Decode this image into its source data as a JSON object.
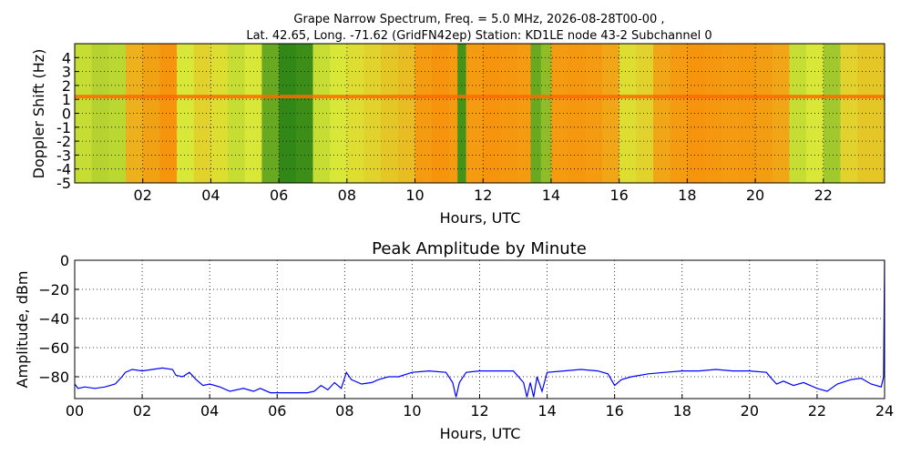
{
  "figure": {
    "title_line1": "Grape Narrow Spectrum, Freq. = 5.0 MHz, 2026-08-28T00-00 ,",
    "title_line2": "Lat.  42.65, Long. -71.62 (GridFN42ep) Station: KD1LE node 43-2 Subchannel 0"
  },
  "chart_data": [
    {
      "type": "heatmap",
      "title": "",
      "xlabel": "Hours, UTC",
      "ylabel": "Doppler Shift (Hz)",
      "xlim": [
        0,
        23.8
      ],
      "ylim": [
        -5,
        5
      ],
      "x_ticks": [
        2,
        4,
        6,
        8,
        10,
        12,
        14,
        16,
        18,
        20,
        22
      ],
      "x_tick_labels": [
        "02",
        "04",
        "06",
        "08",
        "10",
        "12",
        "14",
        "16",
        "18",
        "20",
        "22"
      ],
      "y_ticks": [
        -5,
        -4,
        -3,
        -2,
        -1,
        0,
        1,
        2,
        3,
        4
      ],
      "y_tick_labels": [
        "-5",
        "-4",
        "-3",
        "-2",
        "-1",
        "0",
        "1",
        "2",
        "3",
        "4"
      ],
      "grid": true,
      "colors": {
        "low": "#1e7d12",
        "mid": "#d9e838",
        "high": "#ff7a00"
      },
      "carrier_doppler_hz": 1.2,
      "column_intensity": [
        {
          "x": 0.0,
          "v": 0.45
        },
        {
          "x": 0.5,
          "v": 0.4
        },
        {
          "x": 1.0,
          "v": 0.42
        },
        {
          "x": 1.5,
          "v": 0.75
        },
        {
          "x": 2.0,
          "v": 0.82
        },
        {
          "x": 2.5,
          "v": 0.88
        },
        {
          "x": 3.0,
          "v": 0.5
        },
        {
          "x": 3.5,
          "v": 0.6
        },
        {
          "x": 4.0,
          "v": 0.55
        },
        {
          "x": 4.5,
          "v": 0.45
        },
        {
          "x": 5.0,
          "v": 0.5
        },
        {
          "x": 5.5,
          "v": 0.2
        },
        {
          "x": 6.0,
          "v": 0.05
        },
        {
          "x": 6.5,
          "v": 0.08
        },
        {
          "x": 7.0,
          "v": 0.45
        },
        {
          "x": 7.5,
          "v": 0.5
        },
        {
          "x": 8.0,
          "v": 0.55
        },
        {
          "x": 8.5,
          "v": 0.6
        },
        {
          "x": 9.0,
          "v": 0.65
        },
        {
          "x": 9.5,
          "v": 0.7
        },
        {
          "x": 10.0,
          "v": 0.85
        },
        {
          "x": 10.5,
          "v": 0.88
        },
        {
          "x": 11.0,
          "v": 0.85
        },
        {
          "x": 11.25,
          "v": 0.1
        },
        {
          "x": 11.5,
          "v": 0.85
        },
        {
          "x": 12.0,
          "v": 0.88
        },
        {
          "x": 12.5,
          "v": 0.87
        },
        {
          "x": 13.0,
          "v": 0.85
        },
        {
          "x": 13.4,
          "v": 0.2
        },
        {
          "x": 13.7,
          "v": 0.3
        },
        {
          "x": 14.0,
          "v": 0.85
        },
        {
          "x": 14.5,
          "v": 0.87
        },
        {
          "x": 15.0,
          "v": 0.85
        },
        {
          "x": 15.5,
          "v": 0.8
        },
        {
          "x": 16.0,
          "v": 0.55
        },
        {
          "x": 16.5,
          "v": 0.6
        },
        {
          "x": 17.0,
          "v": 0.8
        },
        {
          "x": 17.5,
          "v": 0.85
        },
        {
          "x": 18.0,
          "v": 0.88
        },
        {
          "x": 18.5,
          "v": 0.87
        },
        {
          "x": 19.0,
          "v": 0.85
        },
        {
          "x": 19.5,
          "v": 0.86
        },
        {
          "x": 20.0,
          "v": 0.84
        },
        {
          "x": 20.5,
          "v": 0.8
        },
        {
          "x": 21.0,
          "v": 0.45
        },
        {
          "x": 21.5,
          "v": 0.5
        },
        {
          "x": 22.0,
          "v": 0.35
        },
        {
          "x": 22.5,
          "v": 0.6
        },
        {
          "x": 23.0,
          "v": 0.65
        },
        {
          "x": 23.8,
          "v": 0.6
        }
      ]
    },
    {
      "type": "line",
      "title": "Peak Amplitude by Minute",
      "xlabel": "Hours, UTC",
      "ylabel": "Amplitude, dBm",
      "xlim": [
        0,
        24
      ],
      "ylim": [
        -95,
        0
      ],
      "x_ticks": [
        0,
        2,
        4,
        6,
        8,
        10,
        12,
        14,
        16,
        18,
        20,
        22,
        24
      ],
      "x_tick_labels": [
        "00",
        "02",
        "04",
        "06",
        "08",
        "10",
        "12",
        "14",
        "16",
        "18",
        "20",
        "22",
        "24"
      ],
      "y_ticks": [
        0,
        -20,
        -40,
        -60,
        -80
      ],
      "y_tick_labels": [
        "0",
        "−20",
        "−40",
        "−60",
        "−80"
      ],
      "grid": true,
      "line_color": "#0000ff",
      "series": [
        {
          "x": [
            0,
            0.1,
            0.3,
            0.6,
            0.9,
            1.2,
            1.4,
            1.5,
            1.7,
            2.0,
            2.3,
            2.6,
            2.9,
            3.0,
            3.2,
            3.4,
            3.6,
            3.8,
            4.0,
            4.3,
            4.6,
            5.0,
            5.3,
            5.5,
            5.8,
            6.0,
            6.3,
            6.6,
            6.9,
            7.1,
            7.3,
            7.5,
            7.7,
            7.9,
            8.05,
            8.2,
            8.5,
            8.8,
            9.0,
            9.3,
            9.6,
            10.0,
            10.5,
            11.0,
            11.2,
            11.3,
            11.4,
            11.6,
            12.0,
            12.5,
            13.0,
            13.3,
            13.4,
            13.5,
            13.6,
            13.7,
            13.85,
            14.0,
            14.5,
            15.0,
            15.5,
            15.8,
            16.0,
            16.2,
            16.5,
            17.0,
            17.5,
            18.0,
            18.5,
            19.0,
            19.5,
            20.0,
            20.5,
            20.6,
            20.8,
            21.0,
            21.3,
            21.6,
            22.0,
            22.3,
            22.6,
            23.0,
            23.3,
            23.6,
            23.9,
            23.97,
            24.0
          ],
          "y": [
            -85,
            -88,
            -87,
            -88,
            -87,
            -85,
            -80,
            -77,
            -75,
            -76,
            -75,
            -74,
            -75,
            -79,
            -80,
            -77,
            -82,
            -86,
            -85,
            -87,
            -90,
            -88,
            -90,
            -88,
            -91,
            -91,
            -91,
            -91,
            -91,
            -90,
            -86,
            -89,
            -84,
            -88,
            -77,
            -82,
            -85,
            -84,
            -82,
            -80,
            -80,
            -77,
            -76,
            -77,
            -84,
            -94,
            -84,
            -77,
            -76,
            -76,
            -76,
            -84,
            -94,
            -84,
            -94,
            -80,
            -90,
            -77,
            -76,
            -75,
            -76,
            -78,
            -86,
            -82,
            -80,
            -78,
            -77,
            -76,
            -76,
            -75,
            -76,
            -76,
            -77,
            -80,
            -85,
            -83,
            -86,
            -84,
            -88,
            -90,
            -85,
            -82,
            -81,
            -85,
            -87,
            -80,
            0
          ]
        }
      ]
    }
  ]
}
